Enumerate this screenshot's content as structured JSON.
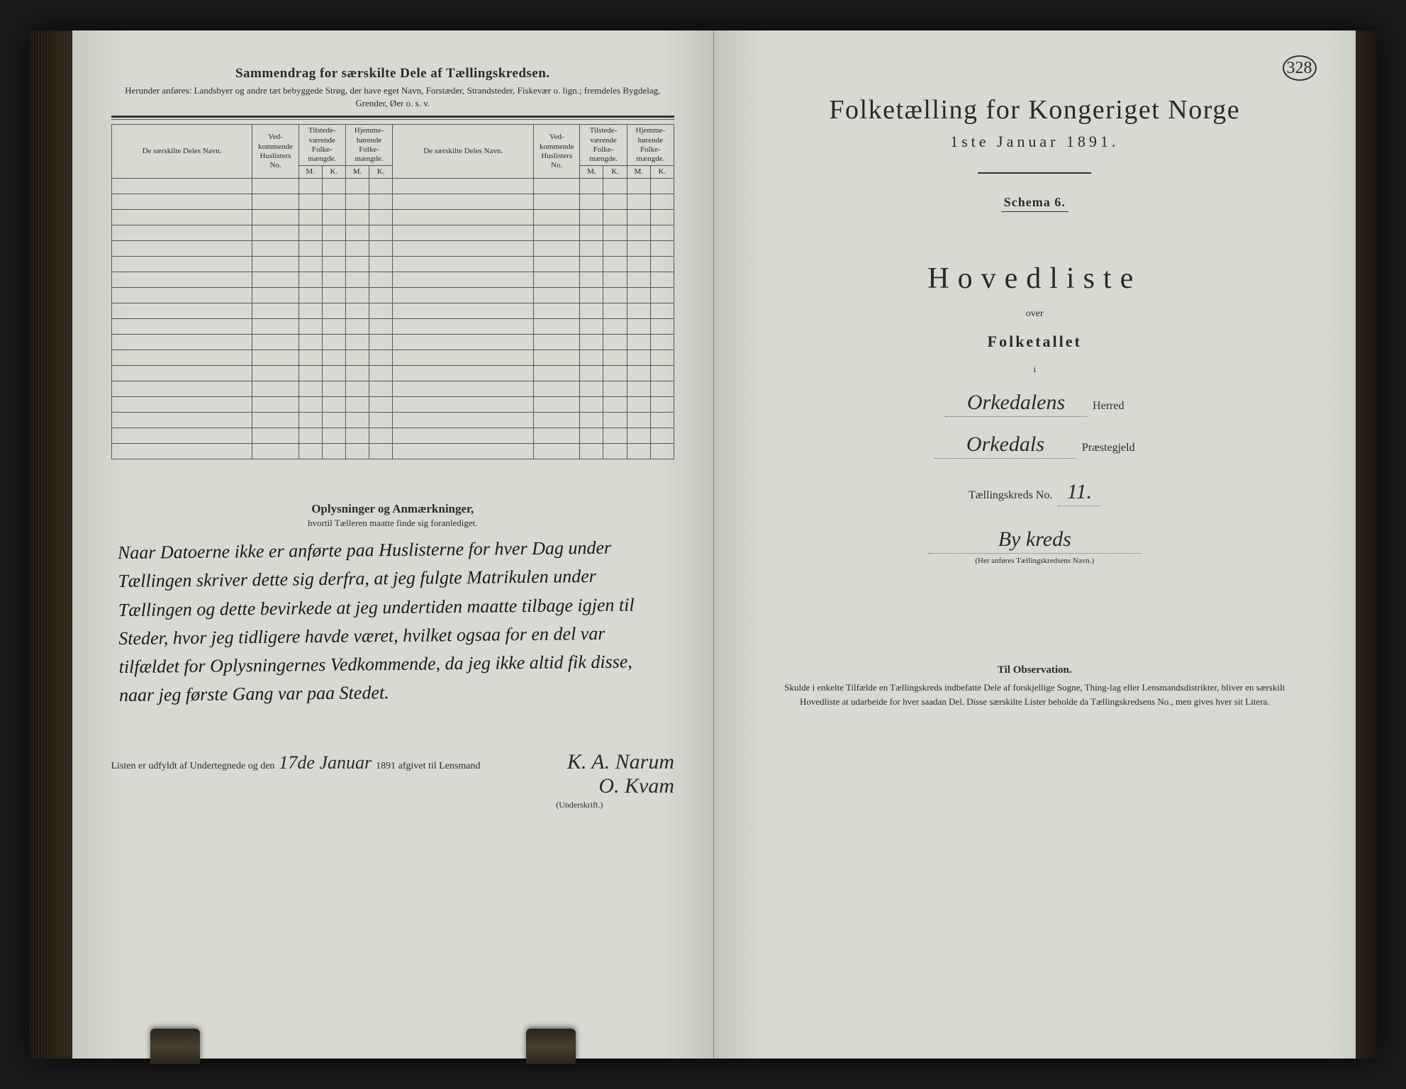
{
  "page_number": "328",
  "left": {
    "title": "Sammendrag for særskilte Dele af Tællingskredsen.",
    "subtitle": "Herunder anføres: Landsbyer og andre tæt bebyggede Strøg, der have eget Navn, Forstæder, Strandsteder, Fiskevær o. lign.; fremdeles Bygdelag, Grender, Øer o. s. v.",
    "table": {
      "col_names": "De særskilte Deles Navn.",
      "col_vedk": "Ved-kommende Huslisters No.",
      "col_tilst": "Tilstede-værende Folke-mængde.",
      "col_hjem": "Hjemme-hørende Folke-mængde.",
      "m": "M.",
      "k": "K.",
      "blank_rows": 18
    },
    "oplysninger_title": "Oplysninger og Anmærkninger,",
    "oplysninger_sub": "hvortil Tælleren maatte finde sig foranlediget.",
    "handwriting": "Naar Datoerne ikke er anførte paa Huslisterne for hver Dag under Tællingen skriver dette sig derfra, at jeg fulgte Matrikulen under Tællingen og dette bevirkede at jeg undertiden maatte tilbage igjen til Steder, hvor jeg tidligere havde været, hvilket ogsaa for en del var tilfældet for Oplysningernes Vedkommende, da jeg ikke altid fik disse, naar jeg første Gang var paa Stedet.",
    "sig_prefix": "Listen er udfyldt af Undertegnede og den",
    "sig_date": "17de Januar",
    "sig_year": "1891 afgivet til Lensmand",
    "sig_name1": "K. A. Narum",
    "sig_name2": "O. Kvam",
    "underskrift": "(Underskrift.)"
  },
  "right": {
    "title": "Folketælling for Kongeriget Norge",
    "date": "1ste Januar 1891.",
    "schema": "Schema 6.",
    "hovedliste": "Hovedliste",
    "over": "over",
    "folketallet": "Folketallet",
    "i": "i",
    "herred_value": "Orkedalens",
    "herred_label": "Herred",
    "praeste_value": "Orkedals",
    "praeste_label": "Præstegjeld",
    "kreds_label": "Tællingskreds No.",
    "kreds_no": "11.",
    "kreds_name": "By kreds",
    "kreds_note": "(Her anføres Tællingskredsens Navn.)",
    "obs_title": "Til Observation.",
    "obs_text": "Skulde i enkelte Tilfælde en Tællingskreds indbefatte Dele af forskjellige Sogne, Thing-lag eller Lensmandsdistrikter, bliver en særskilt Hovedliste at udarbeide for hver saadan Del. Disse særskilte Lister beholde da Tællingskredsens No., men gives hver sit Litera."
  },
  "colors": {
    "page_bg": "#d8dad2",
    "text": "#2a2a2a",
    "book_bg": "#1a1a1a"
  }
}
